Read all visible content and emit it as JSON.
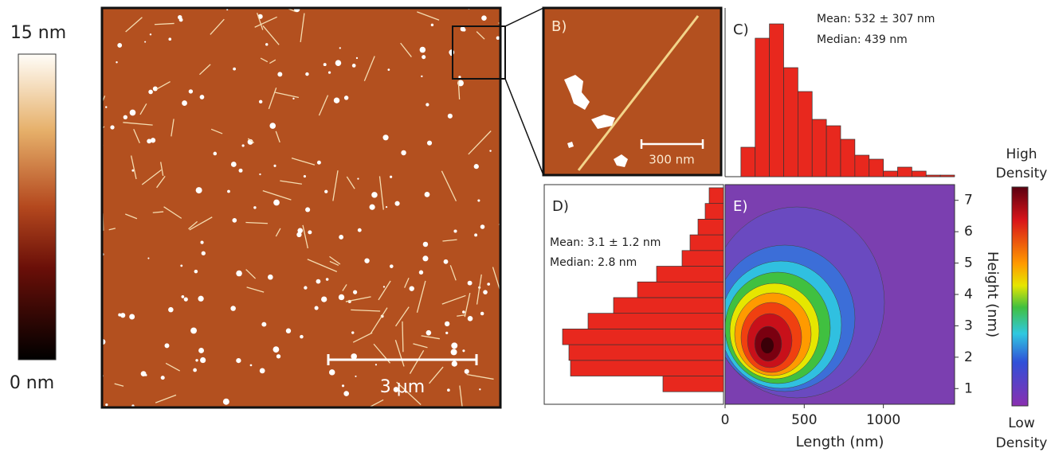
{
  "afm_colorbar": {
    "max_label": "15 nm",
    "min_label": "0 nm"
  },
  "afm_image": {
    "scale_bar": "3 μm"
  },
  "inset": {
    "panel_label": "B)",
    "scale_bar": "300 nm"
  },
  "chart_data": [
    {
      "type": "histogram",
      "panel_label": "C)",
      "annotations": [
        "Mean: 532 ± 307 nm",
        "Median: 439 nm"
      ],
      "bins": [
        100,
        190,
        280,
        370,
        460,
        550,
        640,
        730,
        820,
        910,
        1000,
        1090,
        1180,
        1270,
        1360,
        1450
      ],
      "counts": [
        37,
        174,
        192,
        137,
        107,
        72,
        64,
        47,
        27,
        22,
        7,
        12,
        7,
        2,
        2
      ],
      "color": "#e8281e",
      "xlim": [
        0,
        1450
      ],
      "ylim": [
        0,
        212
      ]
    },
    {
      "type": "histogram",
      "orientation": "horizontal",
      "panel_label": "D)",
      "annotations": [
        "Mean: 3.1 ± 1.2 nm",
        "Median: 2.8 nm"
      ],
      "bins": [
        0.9,
        1.4,
        1.9,
        2.4,
        2.9,
        3.4,
        3.9,
        4.4,
        4.9,
        5.4,
        5.9,
        6.4,
        6.9,
        7.4
      ],
      "counts": [
        76,
        192,
        194,
        202,
        170,
        138,
        108,
        84,
        52,
        42,
        32,
        23,
        18
      ],
      "color": "#e8281e",
      "xlim": [
        0,
        225
      ],
      "ylim": [
        0.5,
        7.5
      ],
      "x_reversed": true
    },
    {
      "type": "contour",
      "panel_label": "E)",
      "xlabel": "Length (nm)",
      "ylabel": "Height (nm)",
      "xlim": [
        0,
        1450
      ],
      "ylim": [
        0.5,
        7.5
      ],
      "xticks": [
        0,
        500,
        1000
      ],
      "yticks": [
        1,
        2,
        3,
        4,
        5,
        6,
        7
      ],
      "colorbar": {
        "high": [
          "High",
          "Density"
        ],
        "low": [
          "Low",
          "Density"
        ]
      }
    }
  ]
}
